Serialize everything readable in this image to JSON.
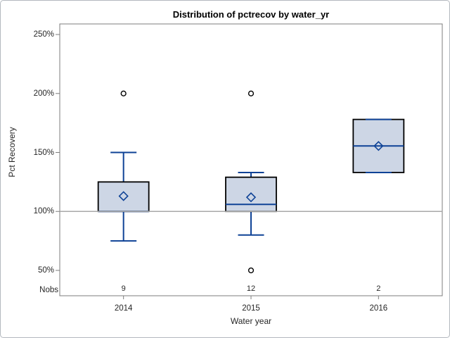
{
  "window": {
    "background": "#ffffff",
    "border_color": "#b3b8be"
  },
  "chart_data": {
    "type": "box",
    "title": "Distribution of pctrecov by water_yr",
    "xlabel": "Water year",
    "ylabel": "Pct Recovery",
    "nobs_label": "Nobs",
    "categories": [
      "2014",
      "2015",
      "2016"
    ],
    "nobs": [
      "9",
      "12",
      "2"
    ],
    "y_ticks": [
      {
        "value": 250,
        "label": "250%"
      },
      {
        "value": 200,
        "label": "200%"
      },
      {
        "value": 150,
        "label": "150%"
      },
      {
        "value": 100,
        "label": "100%"
      },
      {
        "value": 50,
        "label": "50%"
      }
    ],
    "ylim": [
      28,
      259
    ],
    "grid": false,
    "legend": "none",
    "reference_line": 100,
    "series": [
      {
        "category": "2014",
        "n": 9,
        "whisker_low": 75,
        "q1": 100,
        "median": 100,
        "q3": 125,
        "whisker_high": 150,
        "mean": 113,
        "outliers": [
          200
        ]
      },
      {
        "category": "2015",
        "n": 12,
        "whisker_low": 80,
        "q1": 100,
        "median": 106,
        "q3": 129,
        "whisker_high": 133,
        "mean": 112,
        "outliers": [
          200,
          50
        ]
      },
      {
        "category": "2016",
        "n": 2,
        "whisker_low": 133,
        "q1": 133,
        "median": 155.5,
        "q3": 178,
        "whisker_high": 178,
        "mean": 155.5,
        "outliers": []
      }
    ],
    "colors": {
      "box_fill": "#cdd6e5",
      "box_border": "#000000",
      "box_line": "#0e4296",
      "outlier": "#000000",
      "reference_line": "#a8a8a8",
      "frame": "#7d7d7d",
      "text": "#262626"
    }
  }
}
